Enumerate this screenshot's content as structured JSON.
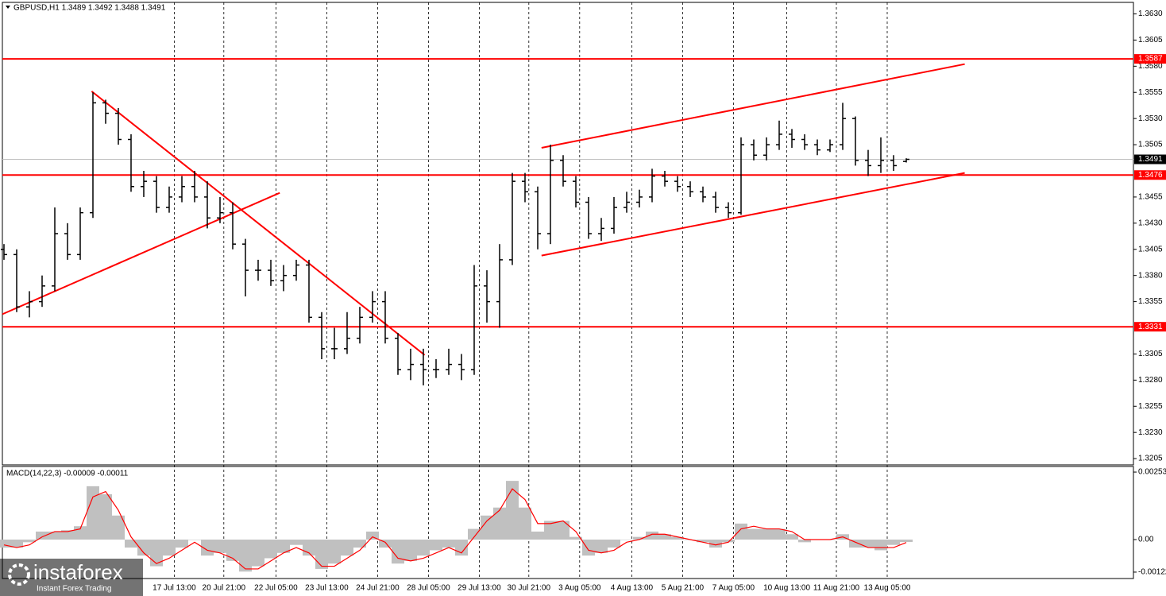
{
  "chart_data": [
    {
      "type": "ohlc",
      "title": "GBPUSD,H1  1.3489 1.3492 1.3488 1.3491",
      "color": "#000000",
      "open": [
        1.3405,
        1.34,
        1.335,
        1.3355,
        1.337,
        1.342,
        1.34,
        1.344,
        1.3545,
        1.3535,
        1.351,
        1.3465,
        1.347,
        1.3445,
        1.3455,
        1.3465,
        1.3455,
        1.3435,
        1.344,
        1.341,
        1.3385,
        1.3385,
        1.3375,
        1.338,
        1.339,
        1.334,
        1.331,
        1.331,
        1.332,
        1.334,
        1.3355,
        1.332,
        1.329,
        1.3295,
        1.329,
        1.329,
        1.3295,
        1.329,
        1.337,
        1.3355,
        1.3395,
        1.347,
        1.346,
        1.342,
        1.349,
        1.347,
        1.345,
        1.342,
        1.3425,
        1.3445,
        1.345,
        1.3455,
        1.3475,
        1.347,
        1.3465,
        1.346,
        1.3455,
        1.3445,
        1.344,
        1.3505,
        1.3495,
        1.3505,
        1.3515,
        1.351,
        1.3505,
        1.35,
        1.3505,
        1.353,
        1.349,
        1.3485,
        1.349,
        1.3489
      ],
      "high": [
        1.341,
        1.3405,
        1.3365,
        1.338,
        1.3445,
        1.343,
        1.3445,
        1.3555,
        1.3548,
        1.354,
        1.3515,
        1.348,
        1.3475,
        1.3465,
        1.3475,
        1.348,
        1.347,
        1.3455,
        1.345,
        1.3415,
        1.3395,
        1.3395,
        1.339,
        1.3395,
        1.3395,
        1.3345,
        1.333,
        1.3345,
        1.335,
        1.3365,
        1.3365,
        1.3325,
        1.331,
        1.331,
        1.33,
        1.331,
        1.3305,
        1.339,
        1.3385,
        1.341,
        1.3478,
        1.3478,
        1.3465,
        1.3505,
        1.3495,
        1.3475,
        1.3455,
        1.3435,
        1.3455,
        1.346,
        1.3462,
        1.3482,
        1.348,
        1.3475,
        1.347,
        1.3465,
        1.346,
        1.345,
        1.3512,
        1.351,
        1.3512,
        1.3528,
        1.352,
        1.3515,
        1.351,
        1.351,
        1.3545,
        1.3532,
        1.35,
        1.3512,
        1.3495,
        1.3492
      ],
      "low": [
        1.3395,
        1.3345,
        1.334,
        1.335,
        1.3365,
        1.3395,
        1.3395,
        1.3435,
        1.3525,
        1.3505,
        1.346,
        1.3455,
        1.344,
        1.344,
        1.345,
        1.345,
        1.3425,
        1.343,
        1.3405,
        1.336,
        1.3375,
        1.337,
        1.3365,
        1.3375,
        1.3335,
        1.33,
        1.33,
        1.3305,
        1.3315,
        1.3335,
        1.3315,
        1.3285,
        1.328,
        1.3275,
        1.3282,
        1.3285,
        1.328,
        1.3285,
        1.3335,
        1.333,
        1.339,
        1.345,
        1.3405,
        1.341,
        1.3465,
        1.3445,
        1.3415,
        1.3413,
        1.342,
        1.344,
        1.3445,
        1.345,
        1.3465,
        1.346,
        1.3455,
        1.345,
        1.344,
        1.3435,
        1.3438,
        1.349,
        1.349,
        1.35,
        1.3502,
        1.35,
        1.3495,
        1.3498,
        1.35,
        1.3485,
        1.3475,
        1.3478,
        1.348,
        1.3488
      ],
      "close": [
        1.34,
        1.335,
        1.3355,
        1.337,
        1.342,
        1.34,
        1.344,
        1.3545,
        1.3535,
        1.351,
        1.3465,
        1.347,
        1.3445,
        1.3455,
        1.3465,
        1.3455,
        1.3435,
        1.344,
        1.341,
        1.3385,
        1.3385,
        1.3375,
        1.338,
        1.339,
        1.334,
        1.331,
        1.331,
        1.332,
        1.334,
        1.3355,
        1.332,
        1.329,
        1.3295,
        1.329,
        1.329,
        1.3295,
        1.329,
        1.337,
        1.3355,
        1.3395,
        1.347,
        1.346,
        1.342,
        1.349,
        1.347,
        1.345,
        1.342,
        1.3425,
        1.3445,
        1.345,
        1.3455,
        1.3475,
        1.347,
        1.3465,
        1.346,
        1.3455,
        1.3445,
        1.344,
        1.3505,
        1.3495,
        1.3505,
        1.3515,
        1.351,
        1.3505,
        1.35,
        1.3505,
        1.353,
        1.349,
        1.3485,
        1.349,
        1.3485,
        1.3491
      ],
      "xlim": [
        -0.125,
        88.875
      ],
      "xticks": [
        {
          "value": 13.4,
          "label": "17 Jul 13:00"
        },
        {
          "value": 17.3,
          "label": "20 Jul 21:00"
        },
        {
          "value": 21.4,
          "label": "22 Jul 05:00"
        },
        {
          "value": 25.4,
          "label": "23 Jul 13:00"
        },
        {
          "value": 29.4,
          "label": "24 Jul 21:00"
        },
        {
          "value": 33.4,
          "label": "28 Jul 05:00"
        },
        {
          "value": 37.4,
          "label": "29 Jul 13:00"
        },
        {
          "value": 41.3,
          "label": "30 Jul 21:00"
        },
        {
          "value": 45.3,
          "label": "3 Aug 05:00"
        },
        {
          "value": 49.4,
          "label": "4 Aug 13:00"
        },
        {
          "value": 53.4,
          "label": "5 Aug 21:00"
        },
        {
          "value": 57.4,
          "label": "7 Aug 05:00"
        },
        {
          "value": 61.6,
          "label": "10 Aug 13:00"
        },
        {
          "value": 65.5,
          "label": "11 Aug 21:00"
        },
        {
          "value": 69.5,
          "label": "13 Aug 05:00"
        }
      ],
      "ylim": [
        1.3199,
        1.3641
      ],
      "yticks": [
        {
          "value": 1.363,
          "label": "1.3630"
        },
        1.3605,
        {
          "value": 1.358,
          "label": "1.3580"
        },
        1.3555,
        {
          "value": 1.353,
          "label": "1.3530"
        },
        1.3505,
        1.3455,
        {
          "value": 1.343,
          "label": "1.3430"
        },
        1.3405,
        {
          "value": 1.338,
          "label": "1.3380"
        },
        1.3355,
        1.3305,
        {
          "value": 1.328,
          "label": "1.3280"
        },
        1.3255,
        {
          "value": 1.323,
          "label": "1.3230"
        },
        1.3205
      ],
      "levels": [
        {
          "value": 1.3587,
          "color": "#ff0000"
        },
        {
          "value": 1.3476,
          "color": "#ff0000"
        },
        {
          "value": 1.3331,
          "color": "#ff0000"
        }
      ],
      "current_price": {
        "value": 1.3491,
        "color": "#c0c0c0"
      },
      "trendlines": [
        {
          "x": [
            -0.125,
            21.7
          ],
          "y": [
            1.3343,
            1.3459
          ],
          "color": "#ff0000"
        },
        {
          "x": [
            6.9,
            33.1
          ],
          "y": [
            1.3556,
            1.3304
          ],
          "color": "#ff0000"
        },
        {
          "x": [
            42.3,
            75.6
          ],
          "y": [
            1.3502,
            1.3582
          ],
          "color": "#ff0000"
        },
        {
          "x": [
            42.3,
            75.6
          ],
          "y": [
            1.3399,
            1.3478
          ],
          "color": "#ff0000"
        }
      ]
    },
    {
      "type": "macd",
      "title": "MACD(14,22,3) -0.00009 -0.00011",
      "color": "#c0c0c0",
      "signal_color": "#ff0000",
      "histogram": [
        -0.0003,
        -0.0003,
        -0.0001,
        0.0003,
        0.0003,
        0.00035,
        0.0005,
        0.002,
        0.0017,
        0.0009,
        -0.0003,
        -0.0006,
        -0.001,
        -0.0006,
        -0.0003,
        0,
        -0.0006,
        -0.0005,
        -0.0008,
        -0.0012,
        -0.001,
        -0.0007,
        -0.0005,
        -0.0002,
        -0.0006,
        -0.0011,
        -0.0009,
        -0.0006,
        -0.0003,
        0.0003,
        -0.0003,
        -0.0009,
        -0.0008,
        -0.0006,
        -0.0004,
        -0.0003,
        -0.0006,
        0.0004,
        0.0009,
        0.0012,
        0.0022,
        0.0012,
        0.0003,
        0.0007,
        0.0007,
        0.0001,
        -0.0006,
        -0.0005,
        -0.0003,
        0,
        0.0001,
        0.0003,
        0.0002,
        0.0001,
        0,
        -0.0001,
        -0.0003,
        -0.0001,
        0.0006,
        0.0004,
        0.0004,
        0.0004,
        0.0002,
        -0.0001,
        0,
        0,
        0.0002,
        -0.0003,
        -0.0003,
        -0.0004,
        -0.0002,
        -9e-05
      ],
      "signal": [
        -0.0002,
        -0.0003,
        -0.0002,
        0.0001,
        0.0003,
        0.0003,
        0.0004,
        0.0016,
        0.0018,
        0.0011,
        0.0001,
        -0.0005,
        -0.0009,
        -0.0007,
        -0.0004,
        -0.0001,
        -0.0004,
        -0.0005,
        -0.0007,
        -0.0011,
        -0.0011,
        -0.0008,
        -0.0005,
        -0.0003,
        -0.0005,
        -0.001,
        -0.001,
        -0.0007,
        -0.0004,
        0.0001,
        -0.0001,
        -0.0007,
        -0.0008,
        -0.0007,
        -0.0005,
        -0.0003,
        -0.0005,
        0.0001,
        0.0007,
        0.0011,
        0.0019,
        0.0015,
        0.0006,
        0.0006,
        0.0007,
        0.0003,
        -0.0004,
        -0.0005,
        -0.0004,
        -0.0001,
        0,
        0.0002,
        0.0002,
        0.0001,
        0,
        -0.0001,
        -0.0002,
        -0.0001,
        0.0004,
        0.0005,
        0.0004,
        0.0004,
        0.0003,
        0,
        0,
        0,
        0.0001,
        -0.0001,
        -0.0003,
        -0.0003,
        -0.0003,
        -0.00011
      ],
      "ylim": [
        -0.00146,
        0.00274
      ],
      "yticks": [
        0.00253,
        {
          "value": 0,
          "label": "0.00"
        },
        -0.00122
      ]
    }
  ],
  "logo": {
    "name": "instaforex",
    "tagline": "Instant Forex Trading"
  }
}
